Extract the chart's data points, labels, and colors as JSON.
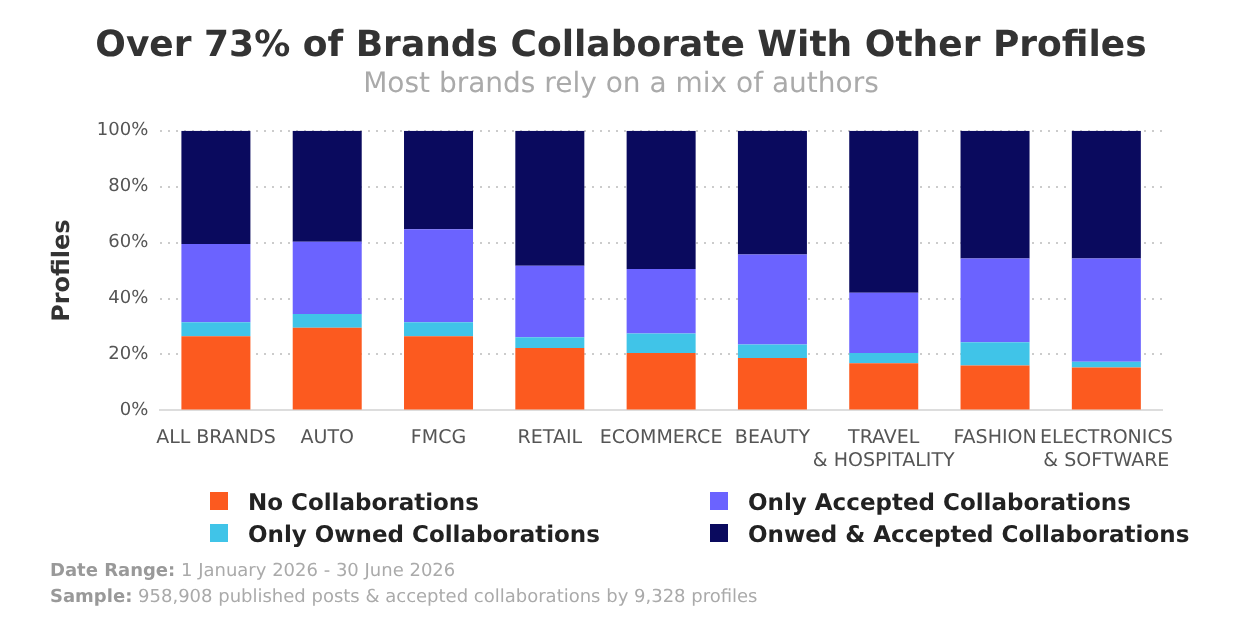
{
  "chart_data": {
    "type": "bar",
    "title": "Over 73% of Brands Collaborate With Other Profiles",
    "subtitle": "Most brands rely on a mix of authors",
    "ylabel": "Profiles",
    "categories": [
      "ALL BRANDS",
      "AUTO",
      "FMCG",
      "RETAIL",
      "ECOMMERCE",
      "BEAUTY",
      "TRAVEL & HOSPITALITY",
      "FASHION",
      "ELECTRONICS & SOFTWARE"
    ],
    "series": [
      {
        "name": "No Collaborations",
        "color": "#fc5a1f",
        "values": [
          26.5,
          29.6,
          26.5,
          22.3,
          20.5,
          18.7,
          16.9,
          16.1,
          15.3
        ]
      },
      {
        "name": "Only Owned Collaborations",
        "color": "#40c4e8",
        "values": [
          5,
          4.9,
          5,
          3.9,
          7,
          4.9,
          3.6,
          8.3,
          2.1
        ]
      },
      {
        "name": "Only Accepted Collaborations",
        "color": "#6b63ff",
        "values": [
          28,
          25.8,
          33.3,
          25.5,
          23.1,
          32.2,
          21.6,
          29.9,
          36.9
        ]
      },
      {
        "name": "Onwed & Accepted Collaborations",
        "color": "#0a0a5e",
        "values": [
          40.5,
          39.7,
          35.2,
          48.3,
          49.4,
          44.2,
          57.9,
          45.7,
          45.7
        ]
      }
    ],
    "stacked": true,
    "ylim": [
      0,
      100
    ],
    "yticks": [
      {
        "value": 0,
        "label": "0%"
      },
      {
        "value": 20,
        "label": "20%"
      },
      {
        "value": 40,
        "label": "40%"
      },
      {
        "value": 60,
        "label": "60%"
      },
      {
        "value": 80,
        "label": "80%"
      },
      {
        "value": 100,
        "label": "100%"
      }
    ],
    "grid": "y",
    "legend": "bottom",
    "annotations": [
      "Date Range: 1 January 2026 - 30 June 2026",
      "Sample: 958,908 published posts & accepted collaborations by 9,328 profiles"
    ]
  }
}
